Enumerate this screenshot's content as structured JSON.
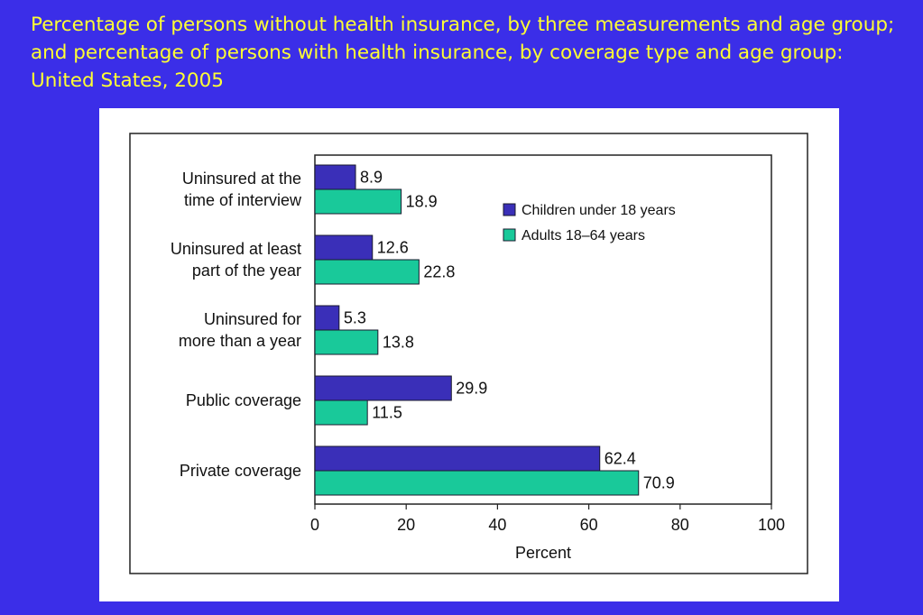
{
  "title": "Percentage of persons without health insurance, by three measurements and age group; and percentage of persons with health insurance, by coverage type and age group: United States, 2005",
  "colors": {
    "background": "#3b2ee8",
    "title": "#ffff33",
    "children": "#3a2fb8",
    "adults": "#19c99a"
  },
  "chart_data": {
    "type": "bar",
    "orientation": "horizontal",
    "categories": [
      [
        "Uninsured at the",
        "time of interview"
      ],
      [
        "Uninsured at least",
        "part of the year"
      ],
      [
        "Uninsured for",
        "more than a year"
      ],
      [
        "Public coverage"
      ],
      [
        "Private coverage"
      ]
    ],
    "series": [
      {
        "name": "Children under 18 years",
        "values": [
          8.9,
          12.6,
          5.3,
          29.9,
          62.4
        ],
        "labels": [
          "8.9",
          "12.6",
          "5.3",
          "29.9",
          "62.4"
        ]
      },
      {
        "name": "Adults 18–64 years",
        "values": [
          18.9,
          22.8,
          13.8,
          11.5,
          70.9
        ],
        "labels": [
          "18.9",
          "22.8",
          "13.8",
          "11.5",
          "70.9"
        ]
      }
    ],
    "xlabel": "Percent",
    "xlim": [
      0,
      100
    ],
    "xticks": [
      "0",
      "20",
      "40",
      "60",
      "80",
      "100"
    ],
    "legend_position": "right",
    "grid": false
  }
}
